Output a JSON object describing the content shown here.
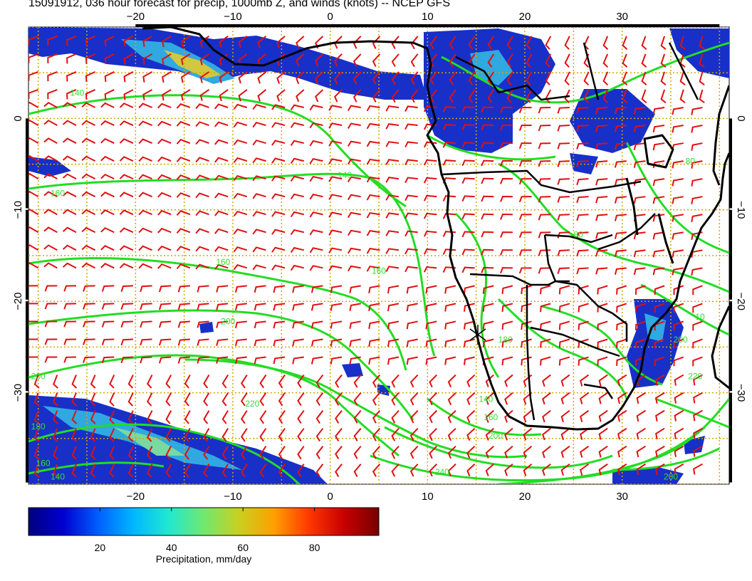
{
  "title": "15091912, 036 hour forecast for precip, 1000mb Z, and winds (knots) -- NCEP GFS",
  "map": {
    "lon_range": [
      -31,
      41
    ],
    "lat_range": [
      -40,
      10
    ],
    "lon_ticks": [
      -20,
      -10,
      0,
      10,
      20,
      30
    ],
    "lat_ticks": [
      0,
      -10,
      -20,
      -30
    ],
    "lon_tick_labels": [
      "−20",
      "−10",
      "0",
      "10",
      "20",
      "30"
    ],
    "lat_tick_labels": [
      "0",
      "−10",
      "−20",
      "−30"
    ],
    "grid": true,
    "grid_style": "dotted-orange",
    "colors": {
      "contour": "#22dd22",
      "barbs": "#e01010",
      "coast": "#000000",
      "grid": "#d4a500"
    },
    "contour_labels": [
      {
        "text": "140",
        "lon": -26,
        "lat": 2.5
      },
      {
        "text": "160",
        "lon": -28,
        "lat": -8.5
      },
      {
        "text": "140",
        "lon": 1.5,
        "lat": -6.5
      },
      {
        "text": "160",
        "lon": -11,
        "lat": -16
      },
      {
        "text": "200",
        "lon": -10.5,
        "lat": -22.5
      },
      {
        "text": "160",
        "lon": 5,
        "lat": -17
      },
      {
        "text": "200",
        "lon": -30,
        "lat": -28.5
      },
      {
        "text": "220",
        "lon": -8,
        "lat": -31.5
      },
      {
        "text": "180",
        "lon": -30,
        "lat": -34
      },
      {
        "text": "160",
        "lon": -29.5,
        "lat": -38
      },
      {
        "text": "140",
        "lon": -28,
        "lat": -39.5
      },
      {
        "text": "140",
        "lon": 16,
        "lat": -31
      },
      {
        "text": "160",
        "lon": 16.5,
        "lat": -33
      },
      {
        "text": "200",
        "lon": 17,
        "lat": -35
      },
      {
        "text": "240",
        "lon": 11.5,
        "lat": -39
      },
      {
        "text": "80",
        "lon": 25.5,
        "lat": -13
      },
      {
        "text": "80",
        "lon": 37,
        "lat": -5
      },
      {
        "text": "180",
        "lon": 18,
        "lat": -24.5
      },
      {
        "text": "200",
        "lon": 36,
        "lat": -24.5
      },
      {
        "text": "220",
        "lon": 37.5,
        "lat": -28.5
      },
      {
        "text": "200",
        "lon": 35,
        "lat": -39.5
      },
      {
        "text": "10",
        "lon": 38,
        "lat": -22
      }
    ]
  },
  "colorbar": {
    "label": "Precipitation, mm/day",
    "ticks": [
      20,
      40,
      60,
      80
    ],
    "tick_labels": [
      "20",
      "40",
      "60",
      "80"
    ],
    "range": [
      0,
      98
    ],
    "colors": [
      "#00007f",
      "#0000d0",
      "#0060ff",
      "#00b8ff",
      "#20e8d0",
      "#70e870",
      "#c8d020",
      "#ffa000",
      "#ff3800",
      "#c80000",
      "#780000"
    ]
  }
}
